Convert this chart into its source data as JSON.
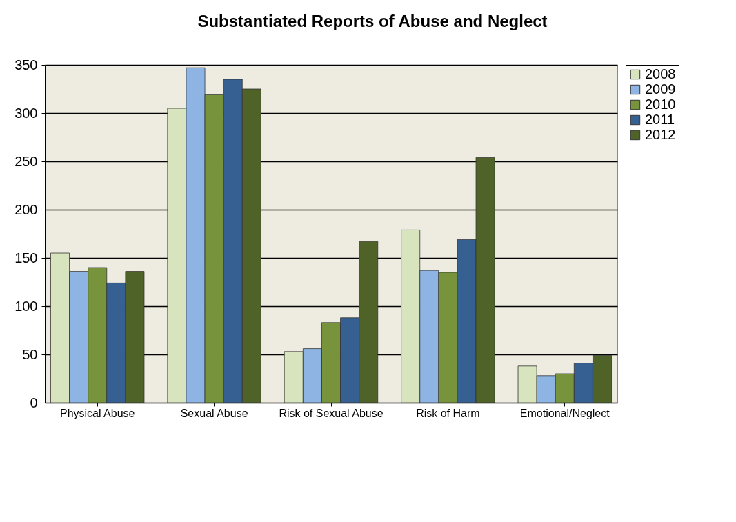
{
  "chart_data": {
    "type": "bar",
    "title": "Substantiated Reports of Abuse and Neglect",
    "categories": [
      "Physical Abuse",
      "Sexual Abuse",
      "Risk of Sexual Abuse",
      "Risk of Harm",
      "Emotional/Neglect"
    ],
    "series": [
      {
        "name": "2008",
        "color": "#d7e4bd",
        "values": [
          155,
          305,
          53,
          179,
          38
        ]
      },
      {
        "name": "2009",
        "color": "#8eb4e3",
        "values": [
          136,
          347,
          56,
          137,
          28
        ]
      },
      {
        "name": "2010",
        "color": "#77933c",
        "values": [
          140,
          319,
          83,
          135,
          30
        ]
      },
      {
        "name": "2011",
        "color": "#376092",
        "values": [
          124,
          335,
          88,
          169,
          41
        ]
      },
      {
        "name": "2012",
        "color": "#4f6228",
        "values": [
          136,
          325,
          167,
          254,
          49
        ]
      }
    ],
    "ylim": [
      0,
      350
    ],
    "yticks": [
      0,
      50,
      100,
      150,
      200,
      250,
      300,
      350
    ],
    "grid": "y",
    "legend": "right"
  }
}
